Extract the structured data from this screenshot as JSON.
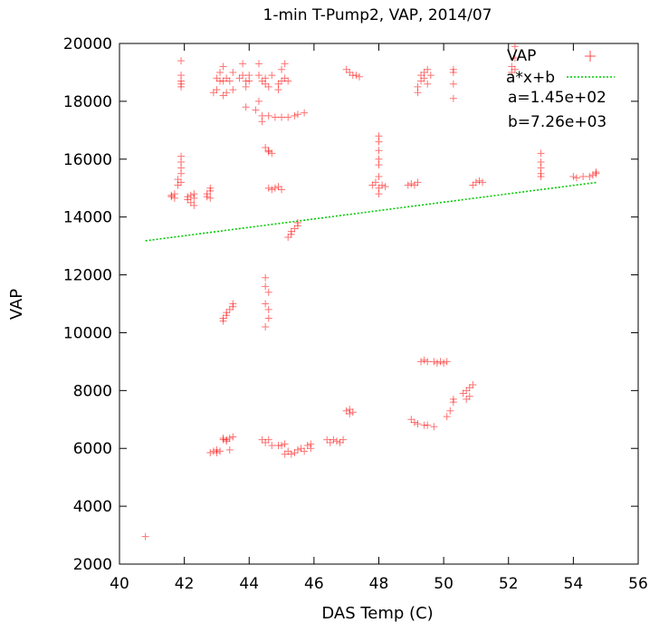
{
  "chart_data": {
    "type": "scatter",
    "title": "1-min T-Pump2, VAP, 2014/07",
    "xlabel": "DAS Temp (C)",
    "ylabel": "VAP",
    "xlim": [
      40,
      56
    ],
    "ylim": [
      2000,
      20000
    ],
    "x_ticks": [
      "40",
      "42",
      "44",
      "46",
      "48",
      "50",
      "52",
      "54",
      "56"
    ],
    "y_ticks": [
      "2000",
      "4000",
      "6000",
      "8000",
      "10000",
      "12000",
      "14000",
      "16000",
      "18000",
      "20000"
    ],
    "grid": false,
    "legend_position": "top-right",
    "legend": [
      {
        "label": "VAP",
        "marker": "plus",
        "color": "#ff0000"
      },
      {
        "label": "a*x+b",
        "marker": "dotted-line",
        "color": "#00cc00"
      }
    ],
    "annotations": [
      "a=1.45e+02",
      "b=7.26e+03"
    ],
    "series": [
      {
        "name": "VAP",
        "kind": "points",
        "color": "#ff0000",
        "points": [
          [
            40.8,
            2950
          ],
          [
            41.6,
            14700
          ],
          [
            41.6,
            14750
          ],
          [
            41.7,
            14650
          ],
          [
            41.7,
            14800
          ],
          [
            41.8,
            15100
          ],
          [
            41.8,
            15300
          ],
          [
            41.9,
            15500
          ],
          [
            41.9,
            15700
          ],
          [
            41.9,
            15900
          ],
          [
            41.9,
            16100
          ],
          [
            41.9,
            15200
          ],
          [
            41.9,
            18500
          ],
          [
            41.9,
            18700
          ],
          [
            41.9,
            18900
          ],
          [
            41.9,
            19400
          ],
          [
            41.9,
            18600
          ],
          [
            42.1,
            14700
          ],
          [
            42.1,
            14600
          ],
          [
            42.2,
            14750
          ],
          [
            42.2,
            14500
          ],
          [
            42.3,
            14650
          ],
          [
            42.3,
            14800
          ],
          [
            42.3,
            14400
          ],
          [
            42.7,
            14700
          ],
          [
            42.7,
            14800
          ],
          [
            42.8,
            14650
          ],
          [
            42.8,
            15000
          ],
          [
            42.8,
            14900
          ],
          [
            42.9,
            18300
          ],
          [
            43.0,
            18400
          ],
          [
            43.0,
            18800
          ],
          [
            43.1,
            18700
          ],
          [
            43.1,
            19000
          ],
          [
            43.2,
            18700
          ],
          [
            43.2,
            19200
          ],
          [
            43.3,
            18800
          ],
          [
            43.3,
            18300
          ],
          [
            43.4,
            18700
          ],
          [
            43.5,
            18400
          ],
          [
            43.5,
            19000
          ],
          [
            43.2,
            18200
          ],
          [
            43.7,
            18800
          ],
          [
            43.8,
            18900
          ],
          [
            43.8,
            19300
          ],
          [
            43.9,
            18700
          ],
          [
            43.9,
            18500
          ],
          [
            44.0,
            18700
          ],
          [
            44.0,
            18900
          ],
          [
            43.9,
            17800
          ],
          [
            44.2,
            17700
          ],
          [
            44.3,
            18000
          ],
          [
            44.4,
            17500
          ],
          [
            44.4,
            17300
          ],
          [
            44.6,
            17500
          ],
          [
            44.3,
            18900
          ],
          [
            44.3,
            19300
          ],
          [
            44.4,
            18700
          ],
          [
            44.5,
            18800
          ],
          [
            44.5,
            18600
          ],
          [
            44.6,
            18500
          ],
          [
            44.7,
            18900
          ],
          [
            44.9,
            18600
          ],
          [
            44.9,
            18400
          ],
          [
            45.0,
            18700
          ],
          [
            45.0,
            19100
          ],
          [
            45.1,
            18800
          ],
          [
            45.1,
            19300
          ],
          [
            45.2,
            18700
          ],
          [
            44.8,
            17450
          ],
          [
            45.0,
            17450
          ],
          [
            45.2,
            17450
          ],
          [
            45.4,
            17500
          ],
          [
            45.5,
            17550
          ],
          [
            45.7,
            17600
          ],
          [
            44.5,
            16400
          ],
          [
            44.6,
            16300
          ],
          [
            44.6,
            16250
          ],
          [
            44.7,
            16200
          ],
          [
            44.6,
            15000
          ],
          [
            44.7,
            14950
          ],
          [
            44.8,
            15000
          ],
          [
            44.9,
            15050
          ],
          [
            45.0,
            14950
          ],
          [
            45.2,
            13300
          ],
          [
            45.3,
            13400
          ],
          [
            45.3,
            13500
          ],
          [
            45.4,
            13600
          ],
          [
            45.5,
            13700
          ],
          [
            45.5,
            13800
          ],
          [
            43.2,
            10500
          ],
          [
            43.3,
            10600
          ],
          [
            43.3,
            10700
          ],
          [
            43.4,
            10800
          ],
          [
            43.5,
            10900
          ],
          [
            43.5,
            11000
          ],
          [
            43.2,
            10400
          ],
          [
            44.5,
            11900
          ],
          [
            44.5,
            11600
          ],
          [
            44.6,
            11400
          ],
          [
            44.5,
            11000
          ],
          [
            44.6,
            10800
          ],
          [
            44.6,
            10500
          ],
          [
            44.5,
            10200
          ],
          [
            42.8,
            5850
          ],
          [
            42.9,
            5900
          ],
          [
            43.0,
            5850
          ],
          [
            43.0,
            5950
          ],
          [
            43.1,
            5900
          ],
          [
            43.2,
            6300
          ],
          [
            43.2,
            6350
          ],
          [
            43.3,
            6250
          ],
          [
            43.3,
            6300
          ],
          [
            43.4,
            6350
          ],
          [
            43.5,
            6400
          ],
          [
            43.4,
            5950
          ],
          [
            44.4,
            6300
          ],
          [
            44.5,
            6200
          ],
          [
            44.6,
            6300
          ],
          [
            44.7,
            6100
          ],
          [
            44.9,
            6100
          ],
          [
            45.0,
            6100
          ],
          [
            45.1,
            6150
          ],
          [
            45.1,
            5800
          ],
          [
            45.2,
            5900
          ],
          [
            45.3,
            5800
          ],
          [
            45.4,
            5850
          ],
          [
            45.5,
            5950
          ],
          [
            45.6,
            6000
          ],
          [
            45.7,
            5900
          ],
          [
            45.8,
            6100
          ],
          [
            45.9,
            6000
          ],
          [
            45.9,
            6150
          ],
          [
            46.4,
            6300
          ],
          [
            46.5,
            6200
          ],
          [
            46.6,
            6300
          ],
          [
            46.7,
            6250
          ],
          [
            46.8,
            6200
          ],
          [
            46.9,
            6300
          ],
          [
            47.0,
            7300
          ],
          [
            47.1,
            7200
          ],
          [
            47.1,
            7350
          ],
          [
            47.2,
            7250
          ],
          [
            47.0,
            19100
          ],
          [
            47.1,
            19000
          ],
          [
            47.2,
            18900
          ],
          [
            47.3,
            18900
          ],
          [
            47.4,
            18850
          ],
          [
            47.8,
            15100
          ],
          [
            47.9,
            15200
          ],
          [
            48.0,
            15000
          ],
          [
            48.1,
            15100
          ],
          [
            48.2,
            15050
          ],
          [
            48.0,
            14800
          ],
          [
            48.0,
            16800
          ],
          [
            48.0,
            16600
          ],
          [
            48.0,
            16300
          ],
          [
            48.0,
            16000
          ],
          [
            48.0,
            15800
          ],
          [
            48.0,
            15400
          ],
          [
            48.9,
            15100
          ],
          [
            49.0,
            15150
          ],
          [
            49.1,
            15100
          ],
          [
            49.2,
            15200
          ],
          [
            49.2,
            18300
          ],
          [
            49.2,
            18500
          ],
          [
            49.3,
            18700
          ],
          [
            49.3,
            18900
          ],
          [
            49.4,
            19000
          ],
          [
            49.5,
            19100
          ],
          [
            49.6,
            18900
          ],
          [
            49.5,
            18600
          ],
          [
            49.4,
            18800
          ],
          [
            49.3,
            9000
          ],
          [
            49.4,
            9050
          ],
          [
            49.5,
            9000
          ],
          [
            49.7,
            9000
          ],
          [
            49.8,
            8950
          ],
          [
            49.9,
            9000
          ],
          [
            50.0,
            8950
          ],
          [
            50.1,
            9000
          ],
          [
            49.0,
            7000
          ],
          [
            49.1,
            6900
          ],
          [
            49.2,
            6850
          ],
          [
            49.4,
            6800
          ],
          [
            49.5,
            6800
          ],
          [
            49.7,
            6750
          ],
          [
            50.1,
            7100
          ],
          [
            50.2,
            7300
          ],
          [
            50.3,
            7600
          ],
          [
            50.3,
            7700
          ],
          [
            50.6,
            7900
          ],
          [
            50.7,
            8000
          ],
          [
            50.8,
            8100
          ],
          [
            50.9,
            8200
          ],
          [
            50.8,
            7800
          ],
          [
            50.7,
            7700
          ],
          [
            50.3,
            19100
          ],
          [
            50.3,
            19000
          ],
          [
            50.3,
            18600
          ],
          [
            50.3,
            18100
          ],
          [
            50.9,
            15100
          ],
          [
            51.0,
            15200
          ],
          [
            51.1,
            15250
          ],
          [
            51.2,
            15200
          ],
          [
            52.1,
            19000
          ],
          [
            52.1,
            19200
          ],
          [
            52.2,
            19100
          ],
          [
            52.2,
            19900
          ],
          [
            52.2,
            19500
          ],
          [
            53.0,
            15400
          ],
          [
            53.0,
            15500
          ],
          [
            53.0,
            15700
          ],
          [
            53.0,
            15900
          ],
          [
            53.0,
            16200
          ],
          [
            54.0,
            15400
          ],
          [
            54.1,
            15350
          ],
          [
            54.3,
            15400
          ],
          [
            54.5,
            15400
          ],
          [
            54.6,
            15450
          ],
          [
            54.7,
            15500
          ],
          [
            54.7,
            15550
          ]
        ]
      },
      {
        "name": "a*x+b",
        "kind": "line",
        "color": "#00cc00",
        "x": [
          40.8,
          54.7
        ],
        "y": [
          13178,
          15194
        ]
      }
    ]
  }
}
